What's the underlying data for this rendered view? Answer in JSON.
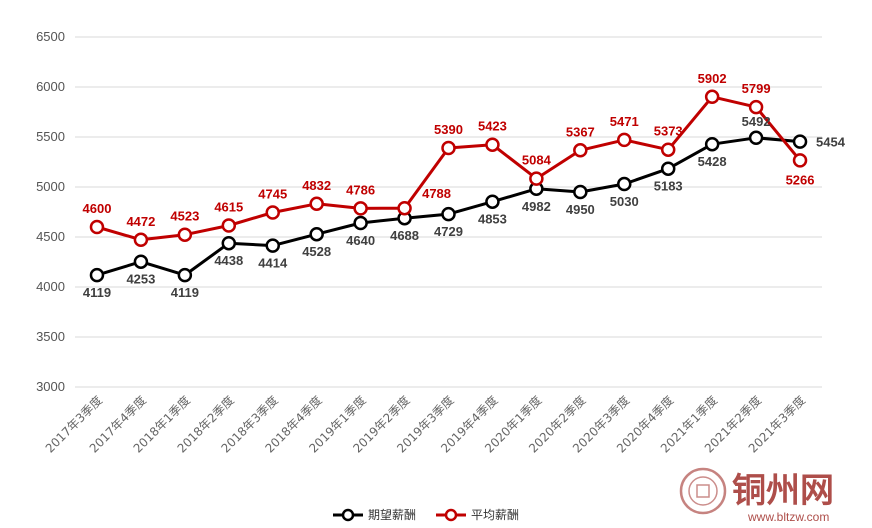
{
  "chart_data": {
    "type": "line",
    "title": "",
    "xlabel": "",
    "ylabel": "",
    "ylim": [
      3000,
      6500
    ],
    "yticks": [
      3000,
      3500,
      4000,
      4500,
      5000,
      5500,
      6000,
      6500
    ],
    "grid": true,
    "legend_position": "bottom",
    "categories": [
      "2017年3季度",
      "2017年4季度",
      "2018年1季度",
      "2018年2季度",
      "2018年3季度",
      "2018年4季度",
      "2019年1季度",
      "2019年2季度",
      "2019年3季度",
      "2019年4季度",
      "2020年1季度",
      "2020年2季度",
      "2020年3季度",
      "2020年4季度",
      "2021年1季度",
      "2021年2季度",
      "2021年3季度"
    ],
    "series": [
      {
        "name": "期望薪酬",
        "color": "#000000",
        "values": [
          4119,
          4253,
          4119,
          4438,
          4414,
          4528,
          4640,
          4688,
          4729,
          4853,
          4982,
          4950,
          5030,
          5183,
          5428,
          5492,
          5454
        ]
      },
      {
        "name": "平均薪酬",
        "color": "#c00000",
        "values": [
          4600,
          4472,
          4523,
          4615,
          4745,
          4832,
          4786,
          4788,
          5390,
          5423,
          5084,
          5367,
          5471,
          5373,
          5902,
          5799,
          5266
        ]
      }
    ]
  },
  "watermark": {
    "title": "铜州网",
    "url": "www.bltzw.com",
    "seal_icon": "seal-icon"
  }
}
